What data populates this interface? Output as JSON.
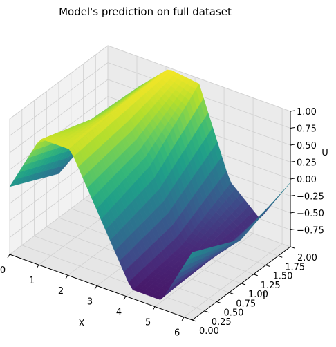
{
  "chart_data": {
    "type": "surface3d",
    "title": "Model's prediction on full dataset",
    "xlabel": "X",
    "ylabel": "T",
    "zlabel": "U",
    "xlim": [
      0,
      6.283
    ],
    "ylim": [
      0,
      2
    ],
    "zlim": [
      -1,
      1
    ],
    "x_ticks": [
      "0",
      "1",
      "2",
      "3",
      "4",
      "5",
      "6"
    ],
    "y_ticks": [
      "0.00",
      "0.25",
      "0.50",
      "0.75",
      "1.00",
      "1.25",
      "1.50",
      "1.75",
      "2.00"
    ],
    "z_ticks": [
      "−0.75",
      "−0.50",
      "−0.25",
      "0.00",
      "0.25",
      "0.50",
      "0.75",
      "1.00"
    ],
    "surface": {
      "x": [
        0,
        1.047,
        2.094,
        3.142,
        4.189,
        5.236,
        6.283
      ],
      "t": [
        0,
        1,
        2
      ],
      "u": [
        [
          0.0,
          0.87,
          0.87,
          0.0,
          -0.87,
          -0.87,
          0.0
        ],
        [
          -0.35,
          0.6,
          0.95,
          0.25,
          -0.75,
          -0.8,
          -0.35
        ],
        [
          -0.05,
          0.55,
          0.98,
          0.92,
          -0.35,
          -0.75,
          -0.05
        ]
      ]
    },
    "colormap": "viridis",
    "grid": true
  }
}
